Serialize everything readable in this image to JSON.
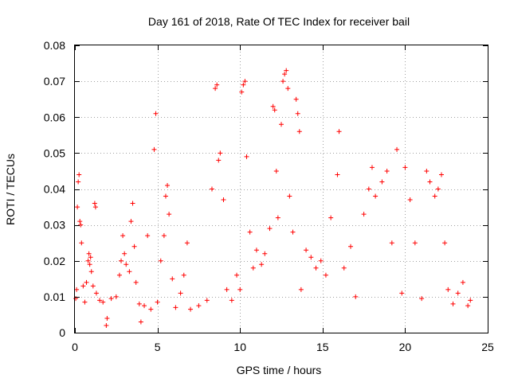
{
  "chart_data": {
    "type": "scatter",
    "title": "Day 161 of 2018, Rate Of TEC Index for receiver bail",
    "xlabel": "GPS time / hours",
    "ylabel": "ROTI / TECUs",
    "xlim": [
      0,
      25
    ],
    "ylim": [
      0,
      0.08
    ],
    "xticks": [
      0,
      5,
      10,
      15,
      20,
      25
    ],
    "xtick_labels": [
      "0",
      "5",
      "10",
      "15",
      "20",
      "25"
    ],
    "yticks": [
      0,
      0.01,
      0.02,
      0.03,
      0.04,
      0.05,
      0.06,
      0.07,
      0.08
    ],
    "ytick_labels": [
      "0",
      "0.01",
      "0.02",
      "0.03",
      "0.04",
      "0.05",
      "0.06",
      "0.07",
      "0.08"
    ],
    "grid": true,
    "marker": "plus",
    "color": "#ff0000",
    "series": [
      {
        "name": "ROTI",
        "points": [
          [
            0.05,
            0.0095
          ],
          [
            0.1,
            0.012
          ],
          [
            0.15,
            0.035
          ],
          [
            0.2,
            0.042
          ],
          [
            0.25,
            0.044
          ],
          [
            0.3,
            0.031
          ],
          [
            0.35,
            0.03
          ],
          [
            0.4,
            0.025
          ],
          [
            0.5,
            0.013
          ],
          [
            0.6,
            0.0085
          ],
          [
            0.7,
            0.014
          ],
          [
            0.8,
            0.02
          ],
          [
            0.85,
            0.022
          ],
          [
            0.9,
            0.019
          ],
          [
            0.95,
            0.021
          ],
          [
            1.0,
            0.017
          ],
          [
            1.1,
            0.013
          ],
          [
            1.2,
            0.036
          ],
          [
            1.25,
            0.035
          ],
          [
            1.3,
            0.011
          ],
          [
            1.5,
            0.009
          ],
          [
            1.7,
            0.0085
          ],
          [
            1.9,
            0.002
          ],
          [
            1.95,
            0.004
          ],
          [
            2.2,
            0.0095
          ],
          [
            2.5,
            0.01
          ],
          [
            2.7,
            0.016
          ],
          [
            2.8,
            0.02
          ],
          [
            2.9,
            0.027
          ],
          [
            3.0,
            0.022
          ],
          [
            3.1,
            0.019
          ],
          [
            3.3,
            0.017
          ],
          [
            3.4,
            0.031
          ],
          [
            3.5,
            0.036
          ],
          [
            3.6,
            0.024
          ],
          [
            3.7,
            0.014
          ],
          [
            3.9,
            0.008
          ],
          [
            4.0,
            0.003
          ],
          [
            4.2,
            0.0075
          ],
          [
            4.4,
            0.027
          ],
          [
            4.6,
            0.0065
          ],
          [
            4.8,
            0.051
          ],
          [
            4.9,
            0.061
          ],
          [
            5.0,
            0.0085
          ],
          [
            5.2,
            0.02
          ],
          [
            5.4,
            0.027
          ],
          [
            5.5,
            0.038
          ],
          [
            5.6,
            0.041
          ],
          [
            5.7,
            0.033
          ],
          [
            5.9,
            0.015
          ],
          [
            6.1,
            0.007
          ],
          [
            6.4,
            0.011
          ],
          [
            6.6,
            0.016
          ],
          [
            6.8,
            0.025
          ],
          [
            7.0,
            0.0065
          ],
          [
            7.5,
            0.0075
          ],
          [
            8.0,
            0.009
          ],
          [
            8.3,
            0.04
          ],
          [
            8.5,
            0.068
          ],
          [
            8.6,
            0.069
          ],
          [
            8.7,
            0.048
          ],
          [
            8.8,
            0.05
          ],
          [
            9.0,
            0.037
          ],
          [
            9.2,
            0.012
          ],
          [
            9.5,
            0.009
          ],
          [
            9.8,
            0.016
          ],
          [
            10.0,
            0.012
          ],
          [
            10.1,
            0.067
          ],
          [
            10.2,
            0.069
          ],
          [
            10.3,
            0.07
          ],
          [
            10.4,
            0.049
          ],
          [
            10.6,
            0.028
          ],
          [
            10.8,
            0.018
          ],
          [
            11.0,
            0.023
          ],
          [
            11.3,
            0.019
          ],
          [
            11.5,
            0.022
          ],
          [
            11.8,
            0.029
          ],
          [
            12.0,
            0.063
          ],
          [
            12.1,
            0.062
          ],
          [
            12.2,
            0.045
          ],
          [
            12.3,
            0.032
          ],
          [
            12.5,
            0.058
          ],
          [
            12.6,
            0.07
          ],
          [
            12.7,
            0.072
          ],
          [
            12.8,
            0.073
          ],
          [
            12.9,
            0.068
          ],
          [
            13.0,
            0.038
          ],
          [
            13.2,
            0.028
          ],
          [
            13.4,
            0.065
          ],
          [
            13.5,
            0.061
          ],
          [
            13.6,
            0.056
          ],
          [
            13.7,
            0.012
          ],
          [
            14.0,
            0.023
          ],
          [
            14.3,
            0.021
          ],
          [
            14.6,
            0.018
          ],
          [
            14.9,
            0.02
          ],
          [
            15.2,
            0.016
          ],
          [
            15.5,
            0.032
          ],
          [
            15.9,
            0.044
          ],
          [
            16.0,
            0.056
          ],
          [
            16.3,
            0.018
          ],
          [
            16.7,
            0.024
          ],
          [
            17.0,
            0.01
          ],
          [
            17.5,
            0.033
          ],
          [
            17.8,
            0.04
          ],
          [
            18.0,
            0.046
          ],
          [
            18.2,
            0.038
          ],
          [
            18.6,
            0.042
          ],
          [
            18.9,
            0.045
          ],
          [
            19.2,
            0.025
          ],
          [
            19.5,
            0.051
          ],
          [
            19.8,
            0.011
          ],
          [
            20.0,
            0.046
          ],
          [
            20.3,
            0.037
          ],
          [
            20.6,
            0.025
          ],
          [
            21.0,
            0.0095
          ],
          [
            21.3,
            0.045
          ],
          [
            21.5,
            0.042
          ],
          [
            21.8,
            0.038
          ],
          [
            22.0,
            0.04
          ],
          [
            22.2,
            0.044
          ],
          [
            22.4,
            0.025
          ],
          [
            22.6,
            0.012
          ],
          [
            22.9,
            0.008
          ],
          [
            23.2,
            0.011
          ],
          [
            23.5,
            0.014
          ],
          [
            23.8,
            0.0075
          ],
          [
            23.95,
            0.009
          ]
        ]
      }
    ]
  }
}
